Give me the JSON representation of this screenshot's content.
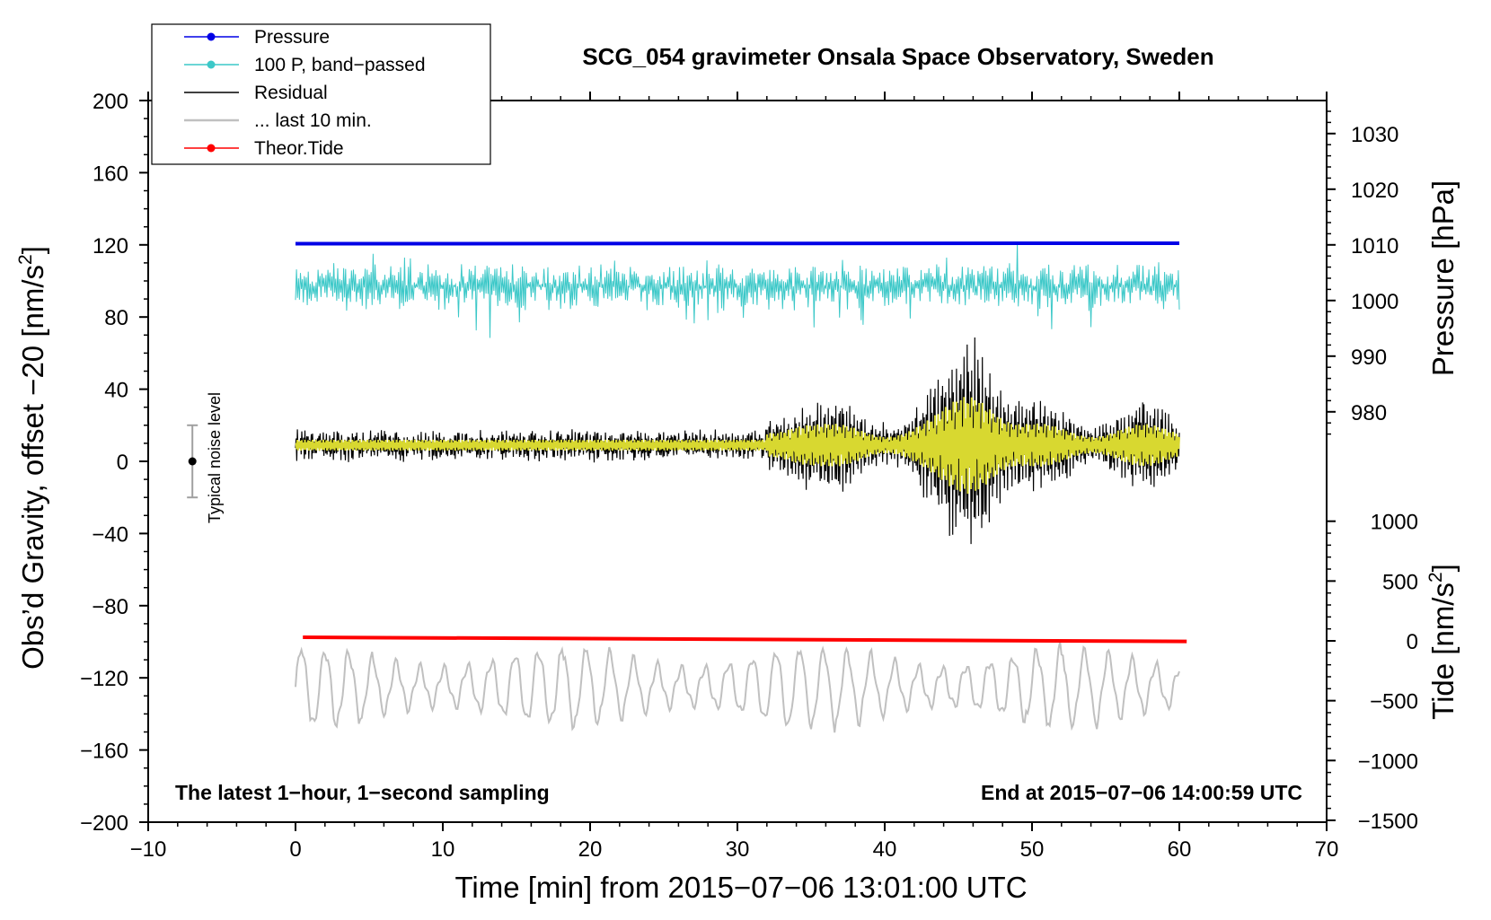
{
  "colors": {
    "pressure": "#0000e6",
    "band_passed": "#3cc8c8",
    "residual": "#000000",
    "last10": "#c0c0c0",
    "tide": "#ff0000",
    "filtered": "#d8d830",
    "axis": "#000000",
    "noise_bar": "#a0a0a0"
  },
  "chart_data": {
    "type": "line",
    "title": "SCG_054 gravimeter Onsala Space Observatory, Sweden",
    "xlabel": "Time [min] from 2015−07−06 13:01:00 UTC",
    "ylabel_left_pre": "Obs’d Gravity, offset −20 [nm/s",
    "ylabel_left_sup": "2",
    "ylabel_left_post": "]",
    "ylabel_right_pressure": "Pressure [hPa]",
    "ylabel_right_tide_pre": "Tide [nm/s",
    "ylabel_right_tide_sup": "2",
    "ylabel_right_tide_post": "]",
    "xlim": [
      -10,
      70
    ],
    "ylim": [
      -200,
      200
    ],
    "pressure_axis_range": [
      975,
      1035
    ],
    "tide_axis_range": [
      -1500,
      1500
    ],
    "x_ticks": [
      {
        "v": -10,
        "label": "−10"
      },
      {
        "v": 0,
        "label": "0"
      },
      {
        "v": 10,
        "label": "10"
      },
      {
        "v": 20,
        "label": "20"
      },
      {
        "v": 30,
        "label": "30"
      },
      {
        "v": 40,
        "label": "40"
      },
      {
        "v": 50,
        "label": "50"
      },
      {
        "v": 60,
        "label": "60"
      },
      {
        "v": 70,
        "label": "70"
      }
    ],
    "y_ticks_left": [
      {
        "v": 200,
        "label": "200"
      },
      {
        "v": 160,
        "label": "160"
      },
      {
        "v": 120,
        "label": "120"
      },
      {
        "v": 80,
        "label": "80"
      },
      {
        "v": 40,
        "label": "40"
      },
      {
        "v": 0,
        "label": "0"
      },
      {
        "v": -40,
        "label": "−40"
      },
      {
        "v": -80,
        "label": "−80"
      },
      {
        "v": -120,
        "label": "−120"
      },
      {
        "v": -160,
        "label": "−160"
      },
      {
        "v": -200,
        "label": "−200"
      }
    ],
    "pressure_ticks": [
      {
        "v": 1030,
        "label": "1030"
      },
      {
        "v": 1020,
        "label": "1020"
      },
      {
        "v": 1010,
        "label": "1010"
      },
      {
        "v": 1000,
        "label": "1000"
      },
      {
        "v": 990,
        "label": "990"
      },
      {
        "v": 980,
        "label": "980"
      }
    ],
    "tide_ticks": [
      {
        "v": 1000,
        "label": "1000"
      },
      {
        "v": 500,
        "label": "500"
      },
      {
        "v": 0,
        "label": "0"
      },
      {
        "v": -500,
        "label": "−500"
      },
      {
        "v": -1000,
        "label": "−1000"
      },
      {
        "v": -1500,
        "label": "−1500"
      }
    ],
    "legend": [
      {
        "label": "Pressure",
        "series": "pressure",
        "marker": true
      },
      {
        "label": "100 P, band−passed",
        "series": "band_passed",
        "marker": true
      },
      {
        "label": "Residual",
        "series": "residual",
        "marker": false
      },
      {
        "label": "... last 10 min.",
        "series": "last10",
        "marker": false
      },
      {
        "label": "Theor.Tide",
        "series": "tide",
        "marker": true
      }
    ],
    "series": [
      {
        "name": "Pressure",
        "key": "pressure",
        "axis": "pressure",
        "x": [
          0,
          60
        ],
        "values": [
          1010.2,
          1010.3
        ]
      },
      {
        "name": "100 P, band−passed",
        "key": "band_passed",
        "axis": "left",
        "x": [
          0,
          60
        ],
        "baseline": 97,
        "range": [
          57,
          128
        ]
      },
      {
        "name": "Residual",
        "key": "residual",
        "axis": "left",
        "x": [
          0,
          60
        ],
        "baseline": 9,
        "range": [
          -57,
          76
        ]
      },
      {
        "name": "... last 10 min.",
        "key": "last10",
        "axis": "left",
        "x": [
          0,
          60
        ],
        "baseline": -125,
        "range": [
          -154,
          -100
        ]
      },
      {
        "name": "Theor.Tide",
        "key": "tide",
        "axis": "tide",
        "x": [
          0,
          60.5
        ],
        "values": [
          30,
          -5
        ]
      }
    ],
    "noise_bar": {
      "x": -7,
      "center": 0,
      "half_range": 20,
      "label": "Typical noise level"
    },
    "note_left": "The latest 1−hour, 1−second sampling",
    "note_right": "End at 2015−07−06 14:00:59 UTC"
  }
}
